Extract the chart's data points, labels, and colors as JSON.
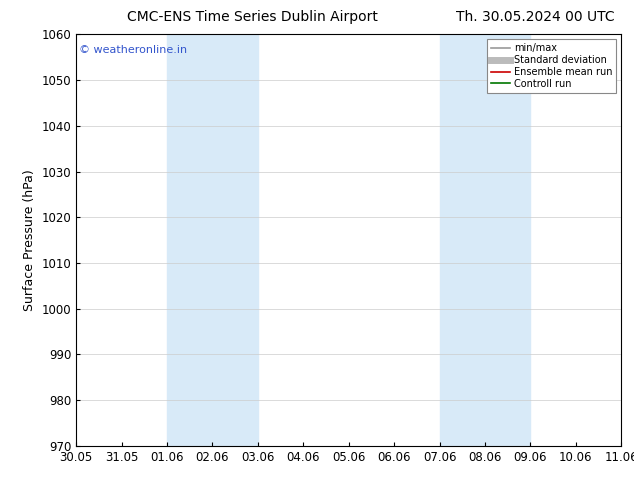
{
  "title_left": "CMC-ENS Time Series Dublin Airport",
  "title_right": "Th. 30.05.2024 00 UTC",
  "ylabel": "Surface Pressure (hPa)",
  "ylim": [
    970,
    1060
  ],
  "yticks": [
    970,
    980,
    990,
    1000,
    1010,
    1020,
    1030,
    1040,
    1050,
    1060
  ],
  "xtick_labels": [
    "30.05",
    "31.05",
    "01.06",
    "02.06",
    "03.06",
    "04.06",
    "05.06",
    "06.06",
    "07.06",
    "08.06",
    "09.06",
    "10.06",
    "11.06"
  ],
  "watermark": "© weatheronline.in",
  "watermark_color": "#3355cc",
  "shaded_regions": [
    {
      "xstart": 2,
      "xend": 4,
      "color": "#d8eaf8"
    },
    {
      "xstart": 8,
      "xend": 10,
      "color": "#d8eaf8"
    }
  ],
  "legend_entries": [
    {
      "label": "min/max",
      "color": "#999999",
      "lw": 1.2,
      "ls": "-"
    },
    {
      "label": "Standard deviation",
      "color": "#bbbbbb",
      "lw": 5,
      "ls": "-"
    },
    {
      "label": "Ensemble mean run",
      "color": "#cc0000",
      "lw": 1.2,
      "ls": "-"
    },
    {
      "label": "Controll run",
      "color": "#007700",
      "lw": 1.2,
      "ls": "-"
    }
  ],
  "bg_color": "#ffffff",
  "grid_color": "#cccccc",
  "title_fontsize": 10,
  "label_fontsize": 9,
  "tick_fontsize": 8.5,
  "watermark_fontsize": 8
}
